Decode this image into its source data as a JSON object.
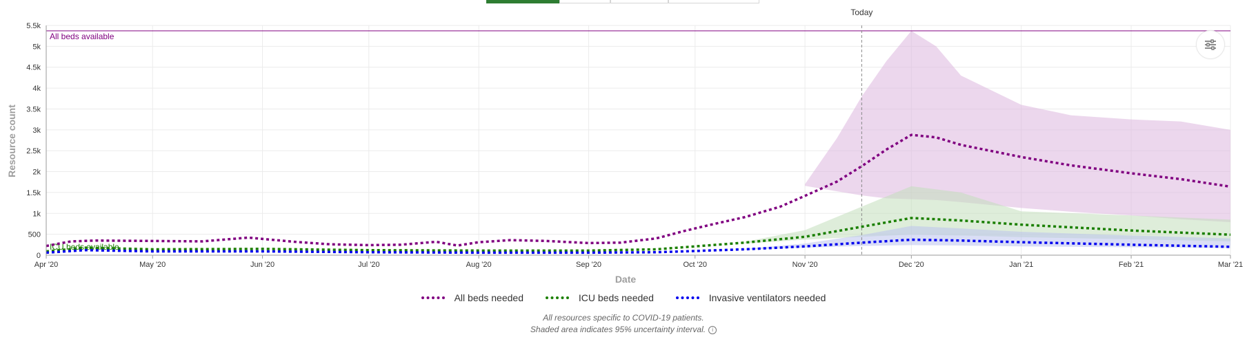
{
  "tabs": [
    {
      "label": "",
      "active": true
    },
    {
      "label": "",
      "active": false
    },
    {
      "label": "",
      "active": false
    },
    {
      "label": "",
      "active": false
    }
  ],
  "settings_icon": "sliders-icon",
  "legend_items": [
    {
      "label": "All beds needed",
      "color": "#800080"
    },
    {
      "label": "ICU beds needed",
      "color": "#1a7f00"
    },
    {
      "label": "Invasive ventilators needed",
      "color": "#0000ee"
    }
  ],
  "notes": {
    "line1": "All resources specific to COVID-19 patients.",
    "line2": "Shaded area indicates 95% uncertainty interval."
  },
  "chart_data": {
    "type": "line",
    "xlabel": "Date",
    "ylabel": "Resource count",
    "x_range": [
      "2020-04-01",
      "2021-03-01"
    ],
    "ylim": [
      0,
      5500
    ],
    "yticks": [
      0,
      500,
      1000,
      1500,
      2000,
      2500,
      3000,
      3500,
      4000,
      4500,
      5000,
      5500
    ],
    "ytick_labels": [
      "0",
      "500",
      "1k",
      "1.5k",
      "2k",
      "2.5k",
      "3k",
      "3.5k",
      "4k",
      "4.5k",
      "5k",
      "5.5k"
    ],
    "xticks": [
      "2020-04-01",
      "2020-05-01",
      "2020-06-01",
      "2020-07-01",
      "2020-08-01",
      "2020-09-01",
      "2020-10-01",
      "2020-11-01",
      "2020-12-01",
      "2021-01-01",
      "2021-02-01",
      "2021-03-01"
    ],
    "xtick_labels": [
      "Apr '20",
      "May '20",
      "Jun '20",
      "Jul '20",
      "Aug '20",
      "Sep '20",
      "Oct '20",
      "Nov '20",
      "Dec '20",
      "Jan '21",
      "Feb '21",
      "Mar '21"
    ],
    "grid": true,
    "legend_position": "bottom",
    "today": {
      "date": "2020-11-17",
      "label": "Today"
    },
    "reference_lines": [
      {
        "label": "All beds available",
        "value": 5370,
        "color": "#800080"
      },
      {
        "label": "ICU beds available",
        "value": 330,
        "color": "#1a7f00"
      }
    ],
    "series": [
      {
        "name": "All beds needed",
        "color": "#800080",
        "x": [
          "2020-04-01",
          "2020-04-08",
          "2020-04-15",
          "2020-05-01",
          "2020-05-15",
          "2020-05-28",
          "2020-06-10",
          "2020-06-20",
          "2020-07-01",
          "2020-07-10",
          "2020-07-20",
          "2020-07-26",
          "2020-08-01",
          "2020-08-10",
          "2020-08-20",
          "2020-09-01",
          "2020-09-10",
          "2020-09-20",
          "2020-09-28",
          "2020-10-05",
          "2020-10-15",
          "2020-10-25",
          "2020-11-01",
          "2020-11-10",
          "2020-11-17",
          "2020-11-24",
          "2020-12-01",
          "2020-12-08",
          "2020-12-15",
          "2021-01-01",
          "2021-01-15",
          "2021-02-01",
          "2021-02-15",
          "2021-03-01"
        ],
        "values": [
          220,
          330,
          350,
          340,
          330,
          420,
          320,
          260,
          240,
          250,
          320,
          230,
          310,
          360,
          340,
          290,
          300,
          400,
          580,
          720,
          910,
          1160,
          1420,
          1760,
          2130,
          2530,
          2880,
          2820,
          2640,
          2350,
          2150,
          1960,
          1820,
          1640
        ]
      },
      {
        "name": "ICU beds needed",
        "color": "#1a7f00",
        "x": [
          "2020-04-01",
          "2020-04-12",
          "2020-05-01",
          "2020-06-01",
          "2020-07-01",
          "2020-08-01",
          "2020-09-01",
          "2020-09-20",
          "2020-10-01",
          "2020-10-15",
          "2020-11-01",
          "2020-11-17",
          "2020-12-01",
          "2020-12-15",
          "2021-01-01",
          "2021-02-01",
          "2021-03-01"
        ],
        "values": [
          90,
          180,
          140,
          150,
          120,
          110,
          110,
          140,
          210,
          300,
          440,
          680,
          890,
          830,
          730,
          590,
          490
        ]
      },
      {
        "name": "Invasive ventilators needed",
        "color": "#0000ee",
        "x": [
          "2020-04-01",
          "2020-04-12",
          "2020-05-01",
          "2020-06-01",
          "2020-07-01",
          "2020-08-01",
          "2020-09-01",
          "2020-09-20",
          "2020-10-01",
          "2020-10-15",
          "2020-11-01",
          "2020-11-17",
          "2020-12-01",
          "2020-12-15",
          "2021-01-01",
          "2021-02-01",
          "2021-03-01"
        ],
        "values": [
          60,
          120,
          90,
          90,
          70,
          60,
          60,
          70,
          100,
          140,
          210,
          300,
          370,
          350,
          310,
          250,
          200
        ]
      }
    ],
    "uncertainty_bands": [
      {
        "name": "All beds needed",
        "color": "#dcb6de",
        "x": [
          "2020-11-01",
          "2020-11-10",
          "2020-11-17",
          "2020-11-24",
          "2020-12-01",
          "2020-12-08",
          "2020-12-15",
          "2021-01-01",
          "2021-01-15",
          "2021-02-01",
          "2021-02-15",
          "2021-03-01"
        ],
        "lower": [
          1660,
          1530,
          1430,
          1360,
          1340,
          1320,
          1270,
          1130,
          1040,
          950,
          860,
          790
        ],
        "upper": [
          1700,
          2800,
          3800,
          4650,
          5370,
          5000,
          4300,
          3600,
          3350,
          3250,
          3200,
          3000
        ]
      },
      {
        "name": "ICU beds needed",
        "color": "#c3dfbc",
        "x": [
          "2020-10-15",
          "2020-11-01",
          "2020-11-17",
          "2020-12-01",
          "2020-12-15",
          "2021-01-01",
          "2021-02-01",
          "2021-03-01"
        ],
        "lower": [
          280,
          370,
          440,
          490,
          470,
          430,
          380,
          330
        ],
        "upper": [
          320,
          600,
          1160,
          1650,
          1500,
          1050,
          950,
          850
        ]
      },
      {
        "name": "Invasive ventilators needed",
        "color": "#bcc3ee",
        "x": [
          "2020-10-15",
          "2020-11-01",
          "2020-11-17",
          "2020-12-01",
          "2020-12-15",
          "2021-01-01",
          "2021-02-01",
          "2021-03-01"
        ],
        "lower": [
          130,
          180,
          220,
          240,
          230,
          210,
          190,
          170
        ],
        "upper": [
          150,
          280,
          480,
          700,
          640,
          560,
          470,
          400
        ]
      }
    ]
  }
}
